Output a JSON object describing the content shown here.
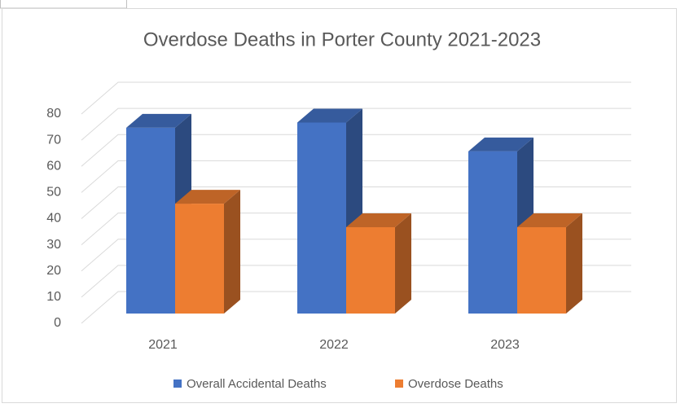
{
  "chart_data": {
    "type": "bar3d",
    "title": "Overdose Deaths in Porter County 2021-2023",
    "categories": [
      "2021",
      "2022",
      "2023"
    ],
    "series": [
      {
        "name": "Overall Accidental Deaths",
        "color": "#4472c4",
        "values": [
          71,
          73,
          62
        ]
      },
      {
        "name": "Overdose Deaths",
        "color": "#ed7d31",
        "values": [
          42,
          33,
          33
        ]
      }
    ],
    "ylim": [
      0,
      80
    ],
    "yticks": [
      0,
      10,
      20,
      30,
      40,
      50,
      60,
      70,
      80
    ],
    "grid": true,
    "legend": "bottom"
  }
}
